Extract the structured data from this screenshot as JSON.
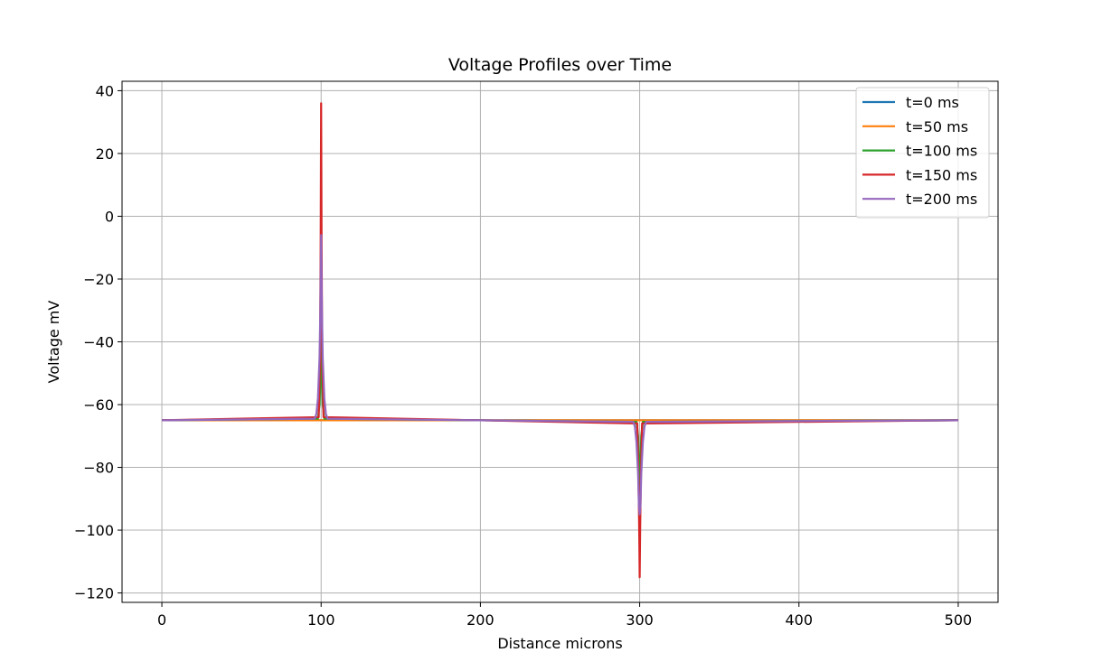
{
  "chart_data": {
    "type": "line",
    "title": "Voltage Profiles over Time",
    "xlabel": "Distance microns",
    "ylabel": "Voltage mV",
    "xlim": [
      -25,
      525
    ],
    "ylim": [
      -123,
      43
    ],
    "xticks": [
      0,
      100,
      200,
      300,
      400,
      500
    ],
    "yticks": [
      -120,
      -100,
      -80,
      -60,
      -40,
      -20,
      0,
      20,
      40
    ],
    "grid": true,
    "legend_position": "top-right",
    "baseline": -65,
    "series": [
      {
        "name": "t=0 ms",
        "color": "#1f77b4",
        "x": [
          0,
          500
        ],
        "y": [
          -65,
          -65
        ]
      },
      {
        "name": "t=50 ms",
        "color": "#ff7f0e",
        "x": [
          0,
          97,
          99,
          100,
          101,
          103,
          297,
          299,
          300,
          301,
          303,
          500
        ],
        "y": [
          -65,
          -65,
          -65,
          -65,
          -65,
          -65,
          -65,
          -65,
          -65,
          -65,
          -65,
          -65
        ]
      },
      {
        "name": "t=100 ms",
        "color": "#2ca02c",
        "x": [
          0,
          98,
          99,
          99.5,
          100,
          100.5,
          101,
          102,
          298,
          299,
          299.5,
          300,
          300.5,
          301,
          302,
          500
        ],
        "y": [
          -65,
          -64.5,
          -60,
          -52,
          -40,
          -52,
          -60,
          -64.5,
          -65.5,
          -70,
          -78,
          -90,
          -78,
          -70,
          -65.5,
          -65
        ]
      },
      {
        "name": "t=150 ms",
        "color": "#d62728",
        "x": [
          0,
          98.5,
          99.3,
          99.7,
          100,
          100.3,
          100.7,
          101.5,
          298.5,
          299.3,
          299.7,
          300,
          300.3,
          300.7,
          301.5,
          500
        ],
        "y": [
          -65,
          -64,
          -45,
          -10,
          36,
          -10,
          -45,
          -64,
          -66,
          -85,
          -100,
          -115,
          -100,
          -85,
          -66,
          -65
        ]
      },
      {
        "name": "t=200 ms",
        "color": "#9467bd",
        "x": [
          0,
          96,
          97,
          98,
          99,
          99.5,
          100,
          100.5,
          101,
          102,
          103,
          104,
          296,
          297,
          298,
          299,
          299.5,
          300,
          300.5,
          301,
          302,
          303,
          304,
          500
        ],
        "y": [
          -65,
          -64.5,
          -63,
          -58,
          -45,
          -30,
          -6,
          -30,
          -45,
          -58,
          -63,
          -64.5,
          -65.5,
          -67,
          -72,
          -82,
          -92,
          -95,
          -92,
          -82,
          -72,
          -67,
          -65.5,
          -65
        ]
      }
    ]
  }
}
